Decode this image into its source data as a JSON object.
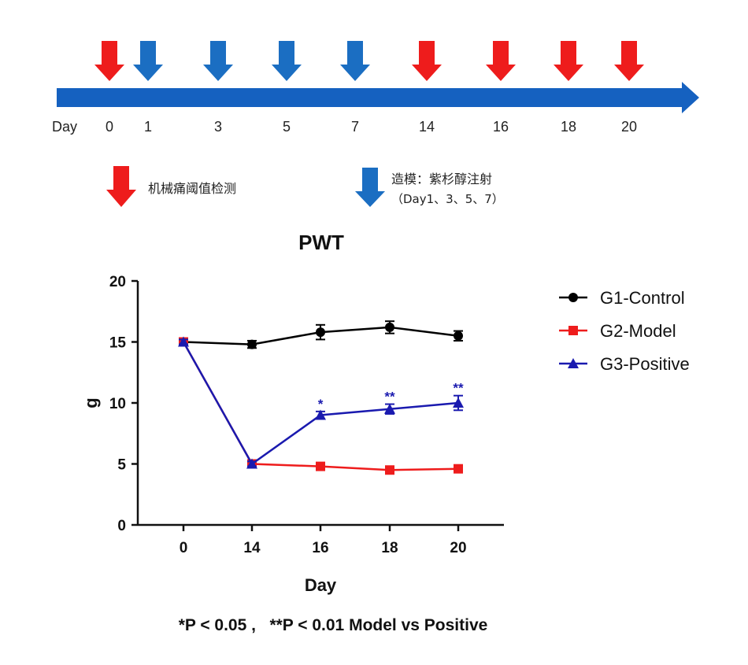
{
  "timeline": {
    "day_label": "Day",
    "days": [
      {
        "label": "0",
        "event": "test"
      },
      {
        "label": "1",
        "event": "model"
      },
      {
        "label": "3",
        "event": "model"
      },
      {
        "label": "5",
        "event": "model"
      },
      {
        "label": "7",
        "event": "model"
      },
      {
        "label": "14",
        "event": "test"
      },
      {
        "label": "16",
        "event": "test"
      },
      {
        "label": "18",
        "event": "test"
      },
      {
        "label": "20",
        "event": "test"
      }
    ],
    "arrow_color": "#1561c0",
    "test_color": "#ee1c1c",
    "model_color": "#1b6ec2"
  },
  "legend_top": {
    "test_label": "机械痛阈值检测",
    "model_label_line1": "造模：紫杉醇注射",
    "model_label_line2": "（Day1、3、5、7）"
  },
  "chart_data": {
    "type": "line",
    "title": "PWT",
    "xlabel": "Day",
    "ylabel": "g",
    "categories": [
      "0",
      "14",
      "16",
      "18",
      "20"
    ],
    "ylim": [
      0,
      20
    ],
    "yticks": [
      0,
      5,
      10,
      15,
      20
    ],
    "grid": false,
    "legend_position": "right",
    "series": [
      {
        "name": "G1-Control",
        "color": "#000000",
        "marker": "circle",
        "values": [
          15.0,
          14.8,
          15.8,
          16.2,
          15.5
        ],
        "errors": [
          0.3,
          0.3,
          0.6,
          0.5,
          0.4
        ]
      },
      {
        "name": "G2-Model",
        "color": "#ee1c1c",
        "marker": "square",
        "values": [
          15.0,
          5.0,
          4.8,
          4.5,
          4.6
        ],
        "errors": [
          0.2,
          0.2,
          0.2,
          0.2,
          0.2
        ]
      },
      {
        "name": "G3-Positive",
        "color": "#1a1aaf",
        "marker": "triangle",
        "values": [
          15.0,
          5.0,
          9.0,
          9.5,
          10.0
        ],
        "errors": [
          0.2,
          0.2,
          0.3,
          0.4,
          0.6
        ]
      }
    ],
    "significance": [
      {
        "category": "16",
        "label": "*"
      },
      {
        "category": "18",
        "label": "**"
      },
      {
        "category": "20",
        "label": "**"
      }
    ],
    "footnote": "*P < 0.05 ,   **P < 0.01 Model vs Positive"
  }
}
